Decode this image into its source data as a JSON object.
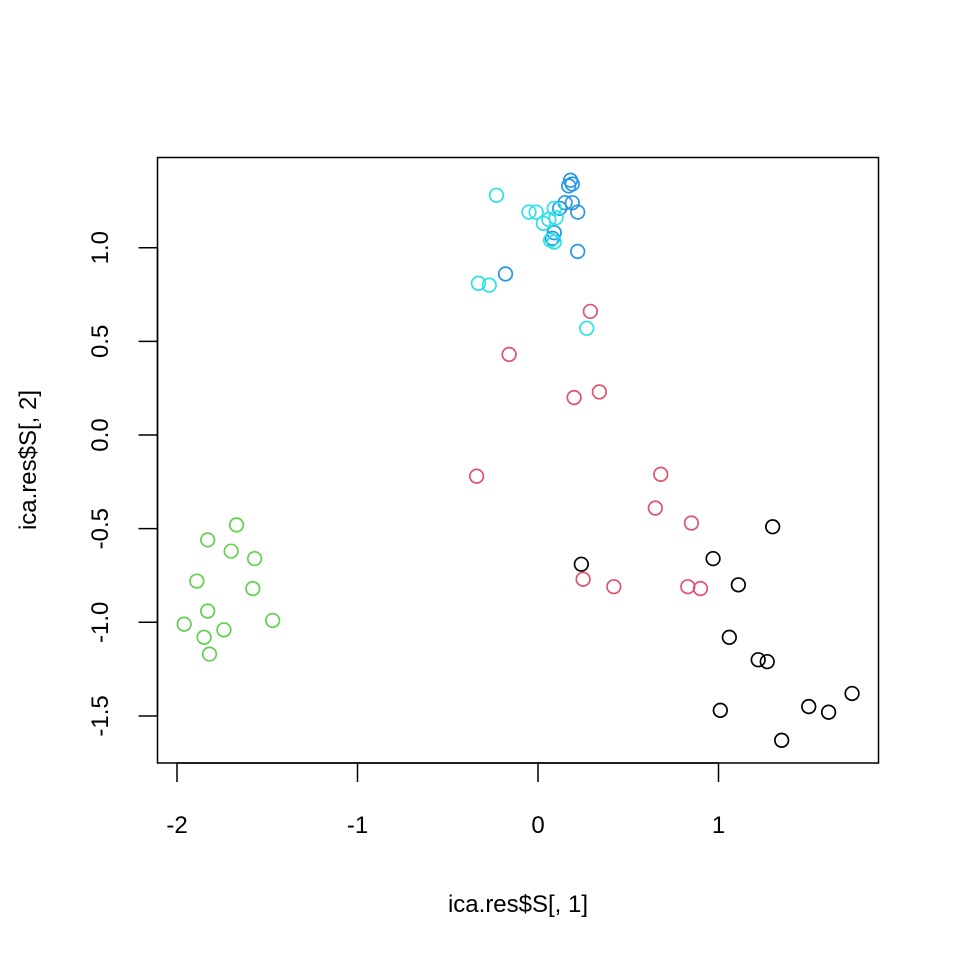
{
  "chart_data": {
    "type": "scatter",
    "title": "",
    "xlabel": "ica.res$S[, 1]",
    "ylabel": "ica.res$S[, 2]",
    "xlim": [
      -2.1,
      1.9
    ],
    "ylim": [
      -1.75,
      1.48
    ],
    "xticks": [
      -2,
      -1,
      0,
      1
    ],
    "xtick_labels": [
      "-2",
      "-1",
      "0",
      "1"
    ],
    "yticks": [
      -1.5,
      -1.0,
      -0.5,
      0.0,
      0.5,
      1.0
    ],
    "ytick_labels": [
      "-1.5",
      "-1.0",
      "-0.5",
      "0.0",
      "0.5",
      "1.0"
    ],
    "grid": false,
    "legend": null,
    "marker": "open-circle",
    "series": [
      {
        "name": "group-1",
        "color": "#000000",
        "points": [
          [
            0.24,
            -0.69
          ],
          [
            0.97,
            -0.66
          ],
          [
            1.3,
            -0.49
          ],
          [
            1.11,
            -0.8
          ],
          [
            1.06,
            -1.08
          ],
          [
            1.22,
            -1.2
          ],
          [
            1.27,
            -1.21
          ],
          [
            1.01,
            -1.47
          ],
          [
            1.5,
            -1.45
          ],
          [
            1.61,
            -1.48
          ],
          [
            1.74,
            -1.38
          ],
          [
            1.35,
            -1.63
          ]
        ]
      },
      {
        "name": "group-2",
        "color": "#DF536B",
        "points": [
          [
            0.29,
            0.66
          ],
          [
            -0.16,
            0.43
          ],
          [
            0.2,
            0.2
          ],
          [
            0.34,
            0.23
          ],
          [
            -0.34,
            -0.22
          ],
          [
            0.68,
            -0.21
          ],
          [
            0.65,
            -0.39
          ],
          [
            0.85,
            -0.47
          ],
          [
            0.25,
            -0.77
          ],
          [
            0.42,
            -0.81
          ],
          [
            0.83,
            -0.81
          ],
          [
            0.9,
            -0.82
          ]
        ]
      },
      {
        "name": "group-3",
        "color": "#61D04F",
        "points": [
          [
            -1.67,
            -0.48
          ],
          [
            -1.83,
            -0.56
          ],
          [
            -1.7,
            -0.62
          ],
          [
            -1.57,
            -0.66
          ],
          [
            -1.89,
            -0.78
          ],
          [
            -1.58,
            -0.82
          ],
          [
            -1.83,
            -0.94
          ],
          [
            -1.96,
            -1.01
          ],
          [
            -1.74,
            -1.04
          ],
          [
            -1.47,
            -0.99
          ],
          [
            -1.85,
            -1.08
          ],
          [
            -1.82,
            -1.17
          ]
        ]
      },
      {
        "name": "group-4",
        "color": "#2297E6",
        "points": [
          [
            0.18,
            1.36
          ],
          [
            0.19,
            1.34
          ],
          [
            0.17,
            1.33
          ],
          [
            0.15,
            1.24
          ],
          [
            0.19,
            1.24
          ],
          [
            0.22,
            1.19
          ],
          [
            0.12,
            1.21
          ],
          [
            0.09,
            1.08
          ],
          [
            0.08,
            1.05
          ],
          [
            0.22,
            0.98
          ],
          [
            -0.18,
            0.86
          ]
        ]
      },
      {
        "name": "group-5",
        "color": "#28E2E5",
        "points": [
          [
            -0.23,
            1.28
          ],
          [
            -0.05,
            1.19
          ],
          [
            -0.01,
            1.19
          ],
          [
            0.03,
            1.13
          ],
          [
            0.06,
            1.15
          ],
          [
            0.09,
            1.21
          ],
          [
            0.1,
            1.16
          ],
          [
            0.07,
            1.04
          ],
          [
            0.09,
            1.03
          ],
          [
            -0.33,
            0.81
          ],
          [
            -0.27,
            0.8
          ],
          [
            0.27,
            0.57
          ]
        ]
      }
    ]
  },
  "plot": {
    "x_axis_label": "ica.res$S[, 1]",
    "y_axis_label": "ica.res$S[, 2]"
  }
}
